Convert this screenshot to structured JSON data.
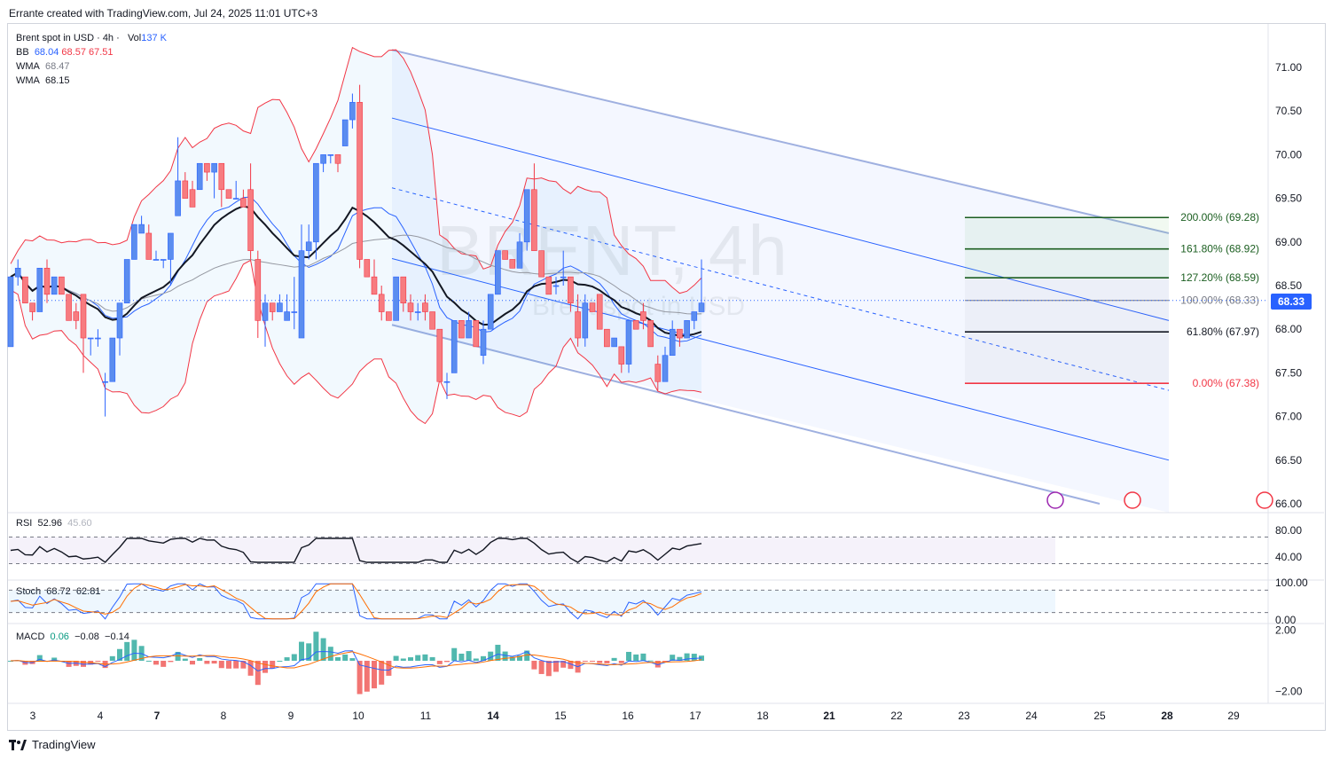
{
  "header": {
    "title": "Errante created with TradingView.com, Jul 24, 2025 11:01 UTC+3"
  },
  "legend": {
    "symbol": "Brent spot in USD · 4h ·",
    "volume_label": "Vol",
    "volume_value": "137 K",
    "bb_label": "BB",
    "bb_values": [
      "68.04",
      "68.57",
      "67.51"
    ],
    "wma1_label": "WMA",
    "wma1_value": "68.47",
    "wma2_label": "WMA",
    "wma2_value": "68.15"
  },
  "watermark": {
    "main": "BRENT, 4h",
    "sub": "Brent spot in USD"
  },
  "price_axis": {
    "ticks": [
      "71.00",
      "70.50",
      "70.00",
      "69.50",
      "69.00",
      "68.50",
      "68.00",
      "67.50",
      "67.00",
      "66.50",
      "66.00"
    ],
    "current_price": "68.33"
  },
  "time_axis": {
    "labels": [
      "3",
      "4",
      "7",
      "8",
      "9",
      "10",
      "11",
      "14",
      "15",
      "16",
      "17",
      "18",
      "21",
      "22",
      "23",
      "24",
      "25",
      "28",
      "29"
    ],
    "bold": [
      "7",
      "14",
      "21",
      "28"
    ]
  },
  "fibonacci": [
    {
      "label": "200.00% (69.28)",
      "level": 69.28,
      "color": "#1b5e20"
    },
    {
      "label": "161.80% (68.92)",
      "level": 68.92,
      "color": "#1b5e20"
    },
    {
      "label": "127.20% (68.59)",
      "level": 68.59,
      "color": "#1b5e20"
    },
    {
      "label": "100.00% (68.33)",
      "level": 68.33,
      "color": "#787b86"
    },
    {
      "label": "61.80% (67.97)",
      "level": 67.97,
      "color": "#131722"
    },
    {
      "label": "0.00% (67.38)",
      "level": 67.38,
      "color": "#f23645"
    }
  ],
  "rsi": {
    "label": "RSI",
    "value": "52.96",
    "ma_value": "45.60",
    "ticks": [
      "80.00",
      "40.00"
    ]
  },
  "stoch": {
    "label": "Stoch",
    "k": "68.72",
    "d": "62.81",
    "ticks": [
      "100.00",
      "0.00"
    ]
  },
  "macd": {
    "label": "MACD",
    "values": [
      "0.06",
      "−0.08",
      "−0.14"
    ],
    "ticks": [
      "2.00",
      "−2.00"
    ]
  },
  "colors": {
    "up": "#5b8def",
    "down": "#f77c80",
    "bb": "#f23645",
    "wma1": "#131722",
    "wma2": "#2962ff",
    "sma": "#9598a1",
    "channel": "#9fb0e0"
  },
  "footer": {
    "brand": "TradingView"
  },
  "chart_data": {
    "type": "candlestick",
    "title": "Brent spot in USD · 4h",
    "y_range": [
      65.9,
      71.3
    ],
    "candles_ohlc": [
      [
        67.8,
        68.6,
        67.8,
        68.6
      ],
      [
        68.6,
        68.8,
        68.5,
        68.7
      ],
      [
        68.6,
        68.6,
        68.3,
        68.3
      ],
      [
        68.3,
        68.3,
        68.1,
        68.2
      ],
      [
        68.2,
        68.7,
        68.2,
        68.7
      ],
      [
        68.7,
        68.8,
        68.3,
        68.4
      ],
      [
        68.4,
        68.6,
        68.4,
        68.6
      ],
      [
        68.6,
        68.6,
        68.4,
        68.4
      ],
      [
        68.4,
        68.4,
        68.2,
        68.1
      ],
      [
        68.2,
        68.3,
        68.0,
        68.1
      ],
      [
        68.4,
        68.4,
        67.5,
        67.9
      ],
      [
        67.9,
        67.9,
        67.7,
        67.9
      ],
      [
        67.9,
        68.0,
        67.8,
        67.9
      ],
      [
        67.4,
        67.5,
        67.0,
        67.4
      ],
      [
        67.4,
        67.9,
        67.4,
        67.9
      ],
      [
        67.9,
        68.3,
        67.7,
        68.3
      ],
      [
        68.3,
        68.8,
        68.3,
        68.8
      ],
      [
        68.8,
        69.2,
        68.8,
        69.2
      ],
      [
        69.1,
        69.3,
        69.1,
        69.2
      ],
      [
        69.1,
        69.2,
        68.8,
        68.8
      ],
      [
        68.8,
        68.9,
        68.8,
        68.8
      ],
      [
        68.8,
        68.8,
        68.7,
        68.8
      ],
      [
        68.8,
        69.1,
        68.5,
        69.1
      ],
      [
        69.3,
        70.2,
        69.3,
        69.7
      ],
      [
        69.7,
        69.8,
        69.5,
        69.5
      ],
      [
        69.6,
        69.7,
        69.4,
        69.4
      ],
      [
        69.6,
        69.9,
        69.6,
        69.9
      ],
      [
        69.9,
        69.9,
        69.7,
        69.8
      ],
      [
        69.8,
        69.9,
        69.5,
        69.9
      ],
      [
        69.9,
        69.9,
        69.4,
        69.6
      ],
      [
        69.6,
        69.6,
        69.5,
        69.5
      ],
      [
        69.5,
        69.7,
        69.5,
        69.5
      ],
      [
        69.5,
        69.6,
        69.4,
        69.4
      ],
      [
        69.6,
        69.9,
        68.8,
        68.9
      ],
      [
        68.8,
        68.9,
        67.9,
        68.1
      ],
      [
        68.1,
        68.4,
        67.8,
        68.3
      ],
      [
        68.3,
        68.3,
        68.1,
        68.2
      ],
      [
        68.2,
        68.4,
        68.2,
        68.3
      ],
      [
        68.1,
        68.4,
        68.1,
        68.2
      ],
      [
        68.2,
        68.6,
        68.0,
        68.2
      ],
      [
        67.9,
        69.2,
        67.9,
        68.9
      ],
      [
        68.9,
        69.2,
        68.8,
        69.0
      ],
      [
        69.0,
        69.9,
        68.8,
        69.9
      ],
      [
        69.9,
        70.0,
        69.8,
        70.0
      ],
      [
        70.0,
        70.0,
        69.9,
        70.0
      ],
      [
        70.0,
        70.0,
        69.8,
        69.9
      ],
      [
        70.1,
        70.4,
        70.1,
        70.4
      ],
      [
        70.4,
        70.7,
        70.3,
        70.6
      ],
      [
        70.6,
        70.8,
        68.7,
        68.8
      ],
      [
        68.8,
        68.8,
        68.6,
        68.6
      ],
      [
        68.6,
        68.8,
        68.4,
        68.4
      ],
      [
        68.4,
        68.5,
        68.1,
        68.2
      ],
      [
        68.2,
        68.2,
        68.1,
        68.1
      ],
      [
        68.1,
        68.6,
        68.1,
        68.6
      ],
      [
        68.6,
        68.6,
        68.2,
        68.3
      ],
      [
        68.3,
        68.4,
        68.1,
        68.2
      ],
      [
        68.2,
        68.3,
        68.1,
        68.2
      ],
      [
        68.3,
        68.4,
        68.1,
        68.2
      ],
      [
        68.2,
        68.2,
        68.0,
        68.0
      ],
      [
        68.0,
        68.0,
        67.4,
        67.4
      ],
      [
        67.4,
        67.5,
        67.2,
        67.4
      ],
      [
        67.5,
        68.1,
        67.5,
        68.1
      ],
      [
        68.1,
        68.1,
        67.9,
        67.9
      ],
      [
        67.9,
        68.2,
        67.9,
        68.1
      ],
      [
        68.1,
        68.1,
        67.8,
        67.8
      ],
      [
        67.7,
        68.1,
        67.6,
        68.0
      ],
      [
        68.0,
        68.4,
        68.0,
        68.4
      ],
      [
        68.4,
        68.9,
        68.4,
        68.9
      ],
      [
        68.9,
        68.9,
        68.8,
        68.8
      ],
      [
        68.8,
        68.8,
        68.7,
        68.7
      ],
      [
        68.7,
        69.1,
        68.7,
        69.0
      ],
      [
        69.0,
        69.6,
        68.9,
        69.6
      ],
      [
        69.6,
        69.9,
        68.9,
        68.9
      ],
      [
        68.9,
        68.9,
        68.6,
        68.6
      ],
      [
        68.6,
        68.6,
        68.4,
        68.4
      ],
      [
        68.5,
        68.6,
        68.4,
        68.5
      ],
      [
        68.6,
        68.9,
        68.5,
        68.6
      ],
      [
        68.6,
        68.6,
        68.2,
        68.3
      ],
      [
        68.2,
        68.4,
        67.8,
        67.9
      ],
      [
        67.9,
        68.4,
        67.8,
        68.3
      ],
      [
        68.3,
        68.3,
        68.2,
        68.2
      ],
      [
        68.4,
        68.4,
        68.0,
        68.0
      ],
      [
        68.0,
        68.0,
        67.8,
        67.8
      ],
      [
        67.8,
        67.9,
        67.8,
        67.9
      ],
      [
        67.8,
        67.8,
        67.5,
        67.6
      ],
      [
        67.6,
        68.1,
        67.5,
        68.1
      ],
      [
        68.1,
        68.1,
        68.0,
        68.0
      ],
      [
        68.2,
        68.3,
        68.0,
        68.1
      ],
      [
        68.1,
        68.1,
        67.8,
        67.8
      ],
      [
        67.6,
        67.7,
        67.3,
        67.4
      ],
      [
        67.4,
        67.8,
        67.4,
        67.7
      ],
      [
        67.7,
        68.1,
        67.7,
        68.0
      ],
      [
        68.0,
        68.0,
        67.8,
        67.9
      ],
      [
        67.9,
        68.1,
        67.9,
        68.1
      ],
      [
        68.1,
        68.2,
        68.0,
        68.2
      ],
      [
        68.2,
        68.8,
        68.2,
        68.3
      ]
    ],
    "rsi_range": [
      0,
      100
    ],
    "stoch_range": [
      0,
      100
    ],
    "macd_range": [
      -2.5,
      2.5
    ],
    "grid": false
  }
}
